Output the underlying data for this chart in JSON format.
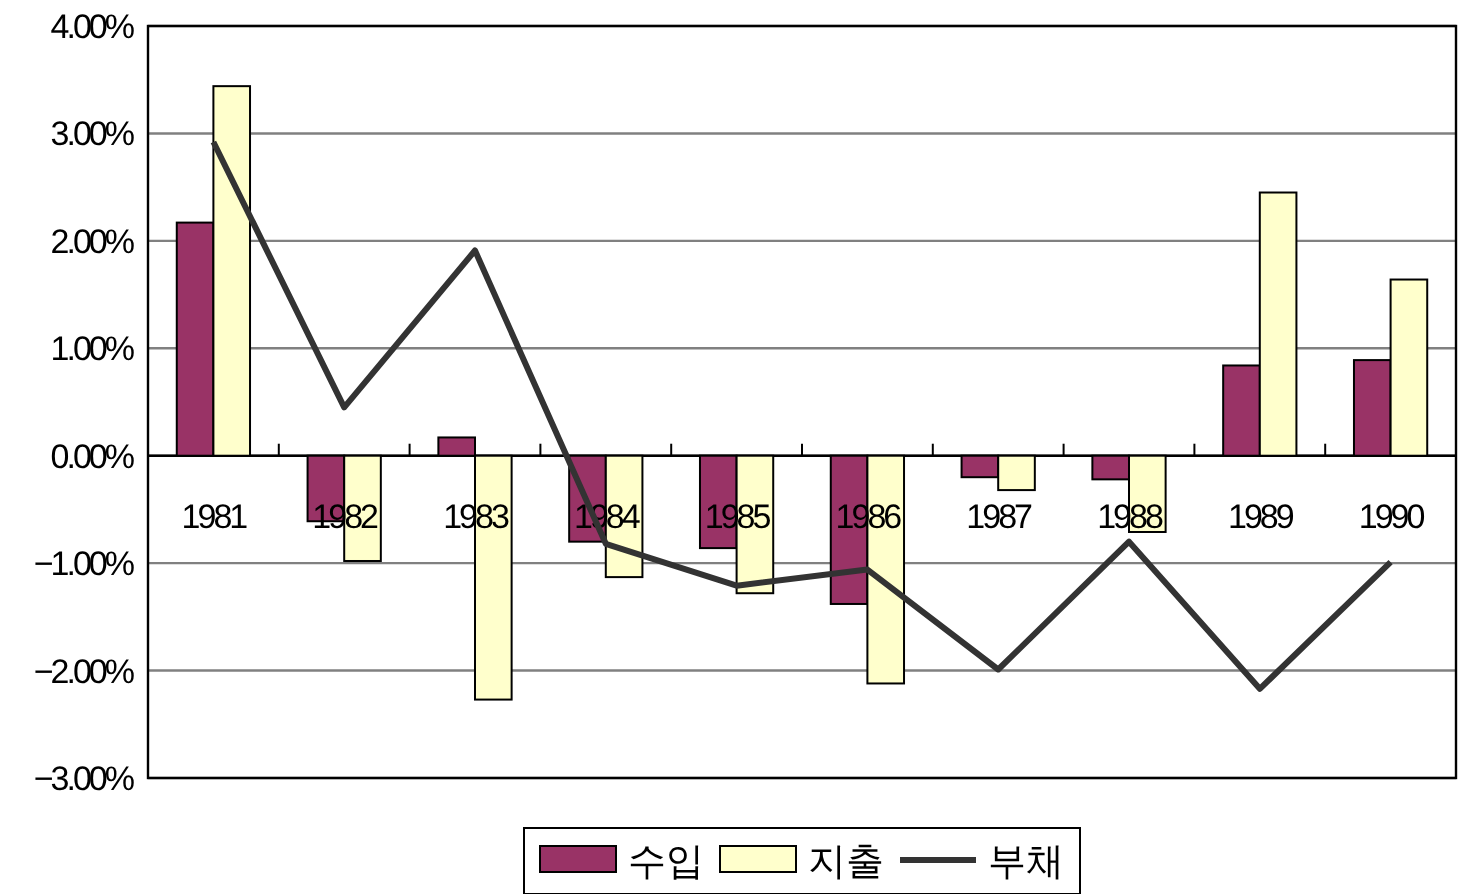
{
  "chart_data": {
    "type": "bar",
    "categories": [
      "1981",
      "1982",
      "1983",
      "1984",
      "1985",
      "1986",
      "1987",
      "1988",
      "1989",
      "1990"
    ],
    "series": [
      {
        "name": "수입",
        "color": "#993366",
        "values": [
          2.17,
          -0.61,
          0.17,
          -0.8,
          -0.86,
          -1.38,
          -0.2,
          -0.22,
          0.84,
          0.89
        ]
      },
      {
        "name": "지출",
        "color": "#ffffcc",
        "values": [
          3.44,
          -0.98,
          -2.27,
          -1.13,
          -1.28,
          -2.12,
          -0.32,
          -0.71,
          2.45,
          1.64
        ]
      },
      {
        "name": "부채",
        "type": "line",
        "color": "#333333",
        "values": [
          2.92,
          0.45,
          1.91,
          -0.82,
          -1.21,
          -1.06,
          -1.99,
          -0.8,
          -2.17,
          -0.99
        ]
      }
    ],
    "ylim": [
      -3,
      4
    ],
    "yticks": [
      {
        "value": 4,
        "label": "4.00%"
      },
      {
        "value": 3,
        "label": "3.00%"
      },
      {
        "value": 2,
        "label": "2.00%"
      },
      {
        "value": 1,
        "label": "1.00%"
      },
      {
        "value": 0,
        "label": "0.00%"
      },
      {
        "value": -1,
        "label": "−1.00%"
      },
      {
        "value": -2,
        "label": "−2.00%"
      },
      {
        "value": -3,
        "label": "−3.00%"
      }
    ],
    "grid": "y",
    "legend": "bottom",
    "marker": "none"
  }
}
